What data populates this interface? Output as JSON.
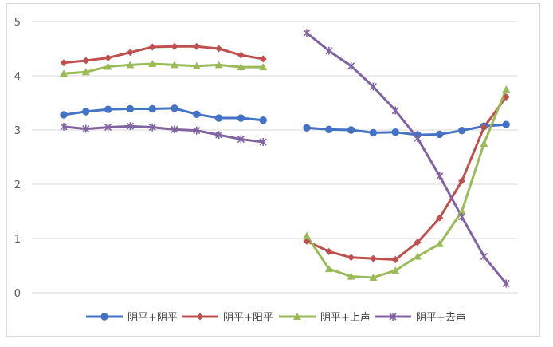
{
  "chart_data": {
    "type": "line",
    "title": "",
    "xlabel": "",
    "ylabel": "",
    "ylim": [
      0,
      5
    ],
    "yticks": [
      0,
      1,
      2,
      3,
      4,
      5
    ],
    "grid": "horizontal",
    "legend_position": "bottom",
    "segments": 2,
    "points_per_segment": 10,
    "series": [
      {
        "name": "阴平+阴平",
        "color": "#4472c4",
        "marker": "circle",
        "segments": [
          [
            3.28,
            3.34,
            3.38,
            3.39,
            3.39,
            3.4,
            3.29,
            3.22,
            3.22,
            3.18
          ],
          [
            3.04,
            3.01,
            3.0,
            2.95,
            2.96,
            2.91,
            2.92,
            2.99,
            3.07,
            3.1
          ]
        ]
      },
      {
        "name": "阴平+阳平",
        "color": "#c0504d",
        "marker": "diamond",
        "segments": [
          [
            4.24,
            4.28,
            4.33,
            4.43,
            4.53,
            4.54,
            4.54,
            4.5,
            4.38,
            4.31
          ],
          [
            0.95,
            0.76,
            0.65,
            0.63,
            0.61,
            0.93,
            1.38,
            2.06,
            3.05,
            3.61
          ]
        ]
      },
      {
        "name": "阴平+上声",
        "color": "#9bbb59",
        "marker": "triangle",
        "segments": [
          [
            4.04,
            4.07,
            4.17,
            4.2,
            4.22,
            4.2,
            4.18,
            4.2,
            4.16,
            4.16
          ],
          [
            1.05,
            0.44,
            0.3,
            0.28,
            0.41,
            0.67,
            0.9,
            1.5,
            2.75,
            3.75
          ]
        ]
      },
      {
        "name": "阴平+去声",
        "color": "#8064a2",
        "marker": "x",
        "segments": [
          [
            3.06,
            3.02,
            3.05,
            3.07,
            3.05,
            3.01,
            2.99,
            2.91,
            2.83,
            2.78
          ],
          [
            4.79,
            4.46,
            4.18,
            3.8,
            3.36,
            2.85,
            2.15,
            1.4,
            0.67,
            0.17
          ]
        ]
      }
    ]
  }
}
